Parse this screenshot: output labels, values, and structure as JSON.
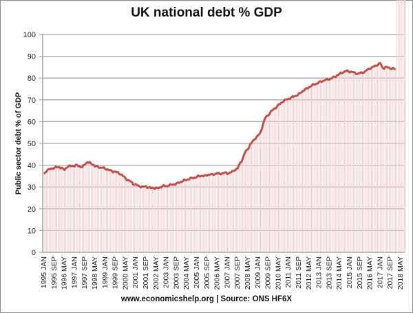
{
  "title": "UK national debt % GDP",
  "footer": "www.economicshelp.org | Source: ONS HF6X",
  "colors": {
    "line": "#c0504d",
    "fill": "#f2d4d3",
    "grid": "#a6a6a6",
    "axis": "#a6a6a6",
    "border": "#8c8c8c"
  },
  "chart_data": {
    "type": "line",
    "title": "UK national debt % GDP",
    "xlabel": "",
    "ylabel": "Public sector debt % of GDP",
    "ylim": [
      0,
      100
    ],
    "yticks": [
      0,
      10,
      20,
      30,
      40,
      50,
      60,
      70,
      80,
      90,
      100
    ],
    "grid": true,
    "legend": "none",
    "x_tick_labels": [
      "1995 JAN",
      "1995 SEP",
      "1996 MAY",
      "1997 JAN",
      "1997 SEP",
      "1998 MAY",
      "1999 JAN",
      "1999 SEP",
      "2000 MAY",
      "2001 JAN",
      "2001 SEP",
      "2002 MAY",
      "2003 JAN",
      "2003 SEP",
      "2004 MAY",
      "2005 JAN",
      "2005 SEP",
      "2006 MAY",
      "2007 JAN",
      "2007 SEP",
      "2008 MAY",
      "2009 JAN",
      "2009 SEP",
      "2010 MAY",
      "2011 JAN",
      "2011 SEP",
      "2012 MAY",
      "2013 JAN",
      "2013 SEP",
      "2014 MAY",
      "2015 JAN",
      "2015 SEP",
      "2016 MAY",
      "2017 JAN",
      "2017 SEP",
      "2018 MAY"
    ],
    "x_tick_step_months": 8,
    "series": [
      {
        "name": "Public sector debt % of GDP",
        "style": "line with area bars",
        "points_month_index": [
          0,
          2,
          4,
          6,
          8,
          10,
          12,
          14,
          16,
          18,
          20,
          22,
          24,
          26,
          28,
          30,
          32,
          34,
          36,
          38,
          40,
          42,
          44,
          46,
          48,
          50,
          52,
          54,
          56,
          58,
          60,
          62,
          64,
          66,
          68,
          70,
          72,
          74,
          76,
          78,
          80,
          82,
          84,
          86,
          88,
          90,
          92,
          94,
          96,
          98,
          100,
          102,
          104,
          106,
          108,
          110,
          112,
          114,
          116,
          118,
          120,
          122,
          124,
          126,
          128,
          130,
          132,
          134,
          136,
          138,
          140,
          142,
          144,
          146,
          148,
          150,
          152,
          154,
          156,
          158,
          160,
          162,
          164,
          166,
          168,
          170,
          172,
          174,
          176,
          178,
          180,
          182,
          184,
          186,
          188,
          190,
          192,
          194,
          196,
          198,
          200,
          202,
          204,
          206,
          208,
          210,
          212,
          214,
          216,
          218,
          220,
          222,
          224,
          226,
          228,
          230,
          232,
          234,
          236,
          238,
          240,
          242,
          244,
          246,
          248,
          250,
          252,
          254,
          256,
          258,
          260,
          262,
          264,
          266,
          268,
          270,
          272,
          274,
          276,
          278,
          280,
          282,
          284
        ],
        "values": [
          36,
          37.5,
          38,
          38.5,
          38.8,
          39,
          39.2,
          38.5,
          38,
          39.2,
          39.5,
          39.8,
          39.6,
          40,
          39.5,
          39,
          40.5,
          41.5,
          41,
          40.5,
          39.5,
          39.3,
          39,
          38.8,
          38.5,
          38,
          37.5,
          37.2,
          37,
          36.5,
          36,
          35,
          34,
          33,
          32.5,
          31.5,
          31,
          30.5,
          30.2,
          30,
          30.3,
          29.8,
          29.5,
          29.6,
          29.4,
          29.5,
          30.2,
          30.5,
          30.3,
          30.8,
          31,
          31.2,
          31.5,
          32,
          32.5,
          33,
          33.3,
          33.8,
          34,
          34.3,
          34.6,
          35,
          35.2,
          35,
          35.5,
          35.8,
          35.6,
          36,
          36.2,
          36,
          36.3,
          36.5,
          36.3,
          36.5,
          37,
          38,
          38.5,
          41,
          43,
          46,
          47.5,
          49.5,
          51,
          52.5,
          53.5,
          55,
          59,
          62,
          63,
          64.5,
          65.5,
          66.5,
          67.5,
          68.5,
          69.5,
          70,
          70.5,
          71,
          71.5,
          72,
          72.5,
          73.5,
          74.5,
          75,
          75.8,
          76.5,
          77,
          77.5,
          78,
          78.5,
          79,
          79.2,
          79.5,
          80,
          80.5,
          81.2,
          81.8,
          82.5,
          83,
          83.2,
          83,
          82.8,
          82.3,
          82,
          82.2,
          82.5,
          83,
          83.8,
          84.5,
          85,
          85.5,
          86.2,
          86.8,
          84.5,
          85,
          84.8,
          84.5,
          84.3,
          84
        ]
      }
    ]
  }
}
